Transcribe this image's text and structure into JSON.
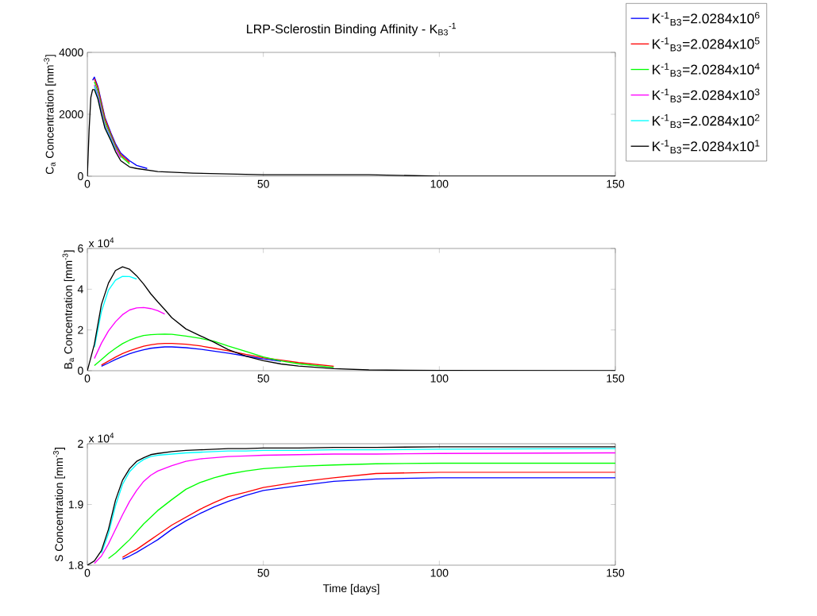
{
  "chart_data": [
    {
      "type": "line",
      "title": "LRP-Sclerostin Binding Affinity - K$_{B3}$$^{-1}$",
      "ylabel": "C$_{a}$ Concentration [mm$^{-3}$]",
      "xlim": [
        0,
        150
      ],
      "ylim": [
        0,
        4000
      ],
      "xticks": [
        0,
        50,
        100,
        150
      ],
      "yticks": [
        0,
        2000,
        4000
      ],
      "legend": "top right",
      "x": [
        0,
        0.5,
        1,
        1.5,
        2,
        3,
        4,
        5,
        6.7,
        8,
        9.5,
        12,
        14,
        17,
        20,
        30,
        50,
        80,
        100,
        150
      ],
      "series": [
        {
          "name": "K$^{-1}$$_{B3}$=2.0284x10$^{6}$",
          "color": "#0000ff",
          "values": [
            null,
            null,
            null,
            3100,
            3200,
            2900,
            2400,
            1900,
            1400,
            1050,
            750,
            500,
            350,
            250,
            null,
            null,
            null,
            null,
            null,
            null
          ]
        },
        {
          "name": "K$^{-1}$$_{B3}$=2.0284x10$^{5}$",
          "color": "#ff0000",
          "values": [
            null,
            null,
            null,
            null,
            3150,
            2850,
            2350,
            1850,
            1350,
            1000,
            700,
            450,
            null,
            null,
            null,
            null,
            null,
            null,
            null,
            null
          ]
        },
        {
          "name": "K$^{-1}$$_{B3}$=2.0284x10$^{4}$",
          "color": "#00ff00",
          "values": [
            null,
            null,
            null,
            null,
            3050,
            2750,
            2250,
            1750,
            1300,
            950,
            650,
            400,
            null,
            null,
            null,
            null,
            null,
            null,
            null,
            null
          ]
        },
        {
          "name": "K$^{-1}$$_{B3}$=2.0284x10$^{3}$",
          "color": "#ff00ff",
          "values": [
            null,
            null,
            null,
            null,
            2950,
            2650,
            2150,
            1650,
            1250,
            900,
            600,
            null,
            null,
            null,
            null,
            null,
            null,
            null,
            null,
            null
          ]
        },
        {
          "name": "K$^{-1}$$_{B3}$=2.0284x10$^{2}$",
          "color": "#00ffff",
          "values": [
            null,
            null,
            null,
            null,
            2900,
            2550,
            2050,
            1600,
            1200,
            850,
            null,
            null,
            null,
            null,
            null,
            null,
            null,
            null,
            null,
            null
          ]
        },
        {
          "name": "K$^{-1}$$_{B3}$=2.0284x10$^{1}$",
          "color": "#000000",
          "values": [
            0,
            1500,
            2550,
            2800,
            2800,
            2500,
            2000,
            1550,
            1150,
            800,
            500,
            300,
            250,
            200,
            150,
            100,
            50,
            50,
            0,
            0
          ]
        }
      ]
    },
    {
      "type": "line",
      "ylabel": "B$_{a}$ Concentration [mm$^{-3}$]",
      "annotations": [
        "x 10$^{4}$"
      ],
      "xlim": [
        0,
        150
      ],
      "ylim": [
        0,
        6
      ],
      "xticks": [
        0,
        50,
        100,
        150
      ],
      "yticks": [
        0,
        2,
        4,
        6
      ],
      "x": [
        0,
        2,
        4,
        6,
        8,
        10,
        12,
        14,
        16,
        18,
        20,
        22,
        24,
        28,
        32,
        36,
        40,
        45,
        50,
        55,
        60,
        70,
        80,
        90,
        100,
        150
      ],
      "series": [
        {
          "color": "#0000ff",
          "values": [
            null,
            null,
            0.22,
            0.38,
            0.55,
            0.7,
            0.83,
            0.94,
            1.03,
            1.1,
            1.14,
            1.17,
            1.17,
            1.13,
            1.06,
            0.96,
            0.86,
            0.72,
            0.58,
            0.46,
            null,
            null,
            null,
            null,
            null,
            null
          ]
        },
        {
          "color": "#ff0000",
          "values": [
            null,
            null,
            0.28,
            0.47,
            0.67,
            0.84,
            0.98,
            1.1,
            1.2,
            1.27,
            1.32,
            1.34,
            1.34,
            1.3,
            1.22,
            1.1,
            0.98,
            0.8,
            0.64,
            0.52,
            0.4,
            0.22,
            null,
            null,
            null,
            null
          ]
        },
        {
          "color": "#00ff00",
          "values": [
            null,
            0.25,
            0.55,
            0.85,
            1.1,
            1.33,
            1.5,
            1.63,
            1.73,
            1.77,
            1.79,
            1.8,
            1.79,
            1.7,
            1.59,
            1.45,
            1.21,
            0.95,
            0.68,
            0.48,
            0.34,
            0.16,
            null,
            null,
            null,
            null
          ]
        },
        {
          "color": "#ff00ff",
          "values": [
            null,
            0.6,
            1.35,
            1.95,
            2.4,
            2.75,
            2.98,
            3.08,
            3.1,
            3.05,
            2.95,
            2.78,
            null,
            null,
            null,
            null,
            null,
            null,
            null,
            null,
            null,
            null,
            null,
            null,
            null,
            null
          ]
        },
        {
          "color": "#00ffff",
          "values": [
            null,
            1.15,
            2.9,
            3.95,
            4.45,
            4.63,
            4.62,
            4.5,
            null,
            null,
            null,
            null,
            null,
            null,
            null,
            null,
            null,
            null,
            null,
            null,
            null,
            null,
            null,
            null,
            null,
            null
          ]
        },
        {
          "color": "#000000",
          "values": [
            0,
            1.3,
            3.25,
            4.3,
            4.92,
            5.1,
            4.98,
            4.66,
            4.25,
            3.78,
            3.38,
            3.0,
            2.6,
            2.05,
            1.72,
            1.4,
            1.04,
            0.72,
            0.49,
            0.33,
            0.23,
            0.1,
            0.04,
            0.02,
            0.01,
            0
          ]
        }
      ]
    },
    {
      "type": "line",
      "xlabel": "Time [days]",
      "ylabel": "S Concentration [mm$^{-3}$]",
      "annotations": [
        "x 10$^{4}$"
      ],
      "xlim": [
        0,
        150
      ],
      "ylim": [
        1.8,
        2
      ],
      "xticks": [
        0,
        50,
        100,
        150
      ],
      "yticks": [
        1.8,
        1.9,
        2
      ],
      "x": [
        0,
        2,
        4,
        6,
        8,
        10,
        12,
        14,
        16,
        18,
        20,
        24,
        28,
        32,
        36,
        40,
        45,
        50,
        60,
        70,
        82,
        100,
        150
      ],
      "series": [
        {
          "color": "#0000ff",
          "values": [
            null,
            null,
            null,
            null,
            null,
            1.81,
            1.815,
            1.821,
            1.828,
            1.835,
            1.842,
            1.859,
            1.873,
            1.885,
            1.896,
            1.905,
            1.915,
            1.923,
            1.931,
            1.938,
            1.942,
            1.944,
            1.944
          ]
        },
        {
          "color": "#ff0000",
          "values": [
            null,
            null,
            null,
            null,
            null,
            1.813,
            1.82,
            1.826,
            1.834,
            1.842,
            1.85,
            1.866,
            1.879,
            1.892,
            1.903,
            1.913,
            1.92,
            1.928,
            1.937,
            1.944,
            1.951,
            1.953,
            1.953
          ]
        },
        {
          "color": "#00ff00",
          "values": [
            null,
            null,
            null,
            1.811,
            1.82,
            1.831,
            1.842,
            1.855,
            1.868,
            1.879,
            1.89,
            1.908,
            1.925,
            1.936,
            1.944,
            1.95,
            1.955,
            1.959,
            1.963,
            1.965,
            1.967,
            1.968,
            1.968
          ]
        },
        {
          "color": "#ff00ff",
          "values": [
            null,
            1.803,
            1.815,
            1.835,
            1.859,
            1.883,
            1.905,
            1.923,
            1.938,
            1.948,
            1.955,
            1.964,
            1.971,
            1.975,
            1.977,
            1.979,
            1.98,
            1.981,
            1.982,
            1.983,
            1.983,
            1.984,
            1.985
          ]
        },
        {
          "color": "#00ffff",
          "values": [
            null,
            null,
            1.82,
            1.852,
            1.898,
            1.933,
            1.954,
            1.966,
            1.974,
            1.979,
            1.981,
            1.983,
            1.985,
            1.986,
            1.987,
            1.988,
            1.988,
            1.989,
            1.989,
            1.99,
            1.99,
            1.991,
            1.992
          ]
        },
        {
          "color": "#000000",
          "values": [
            1.8,
            1.807,
            1.824,
            1.859,
            1.907,
            1.94,
            1.959,
            1.971,
            1.977,
            1.982,
            1.984,
            1.987,
            1.989,
            1.99,
            1.991,
            1.992,
            1.992,
            1.993,
            1.993,
            1.994,
            1.994,
            1.995,
            1.995
          ]
        }
      ]
    }
  ]
}
